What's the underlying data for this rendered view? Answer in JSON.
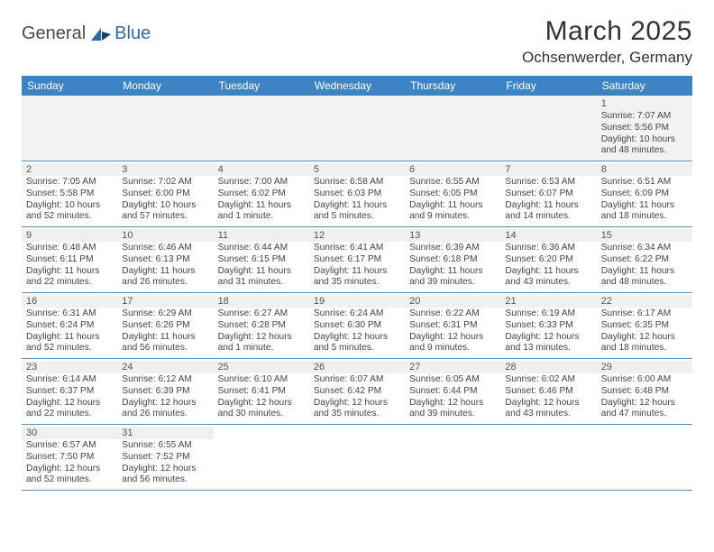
{
  "logo": {
    "text1": "General",
    "text2": "Blue"
  },
  "title": "March 2025",
  "location": "Ochsenwerder, Germany",
  "colors": {
    "header_bg": "#3d84c4",
    "header_text": "#ffffff",
    "daynum_bg": "#f0f0f0",
    "border": "#5a8cb8",
    "text": "#333333",
    "logo_dark": "#4a4a4a",
    "logo_blue": "#2d6aa8"
  },
  "fonts": {
    "title_size_pt": 22,
    "location_size_pt": 13,
    "dayheader_size_pt": 9,
    "daynum_size_pt": 8,
    "body_size_pt": 7.7
  },
  "dayNames": [
    "Sunday",
    "Monday",
    "Tuesday",
    "Wednesday",
    "Thursday",
    "Friday",
    "Saturday"
  ],
  "weeks": [
    [
      null,
      null,
      null,
      null,
      null,
      null,
      {
        "n": "1",
        "sr": "Sunrise: 7:07 AM",
        "ss": "Sunset: 5:56 PM",
        "dl1": "Daylight: 10 hours",
        "dl2": "and 48 minutes."
      }
    ],
    [
      {
        "n": "2",
        "sr": "Sunrise: 7:05 AM",
        "ss": "Sunset: 5:58 PM",
        "dl1": "Daylight: 10 hours",
        "dl2": "and 52 minutes."
      },
      {
        "n": "3",
        "sr": "Sunrise: 7:02 AM",
        "ss": "Sunset: 6:00 PM",
        "dl1": "Daylight: 10 hours",
        "dl2": "and 57 minutes."
      },
      {
        "n": "4",
        "sr": "Sunrise: 7:00 AM",
        "ss": "Sunset: 6:02 PM",
        "dl1": "Daylight: 11 hours",
        "dl2": "and 1 minute."
      },
      {
        "n": "5",
        "sr": "Sunrise: 6:58 AM",
        "ss": "Sunset: 6:03 PM",
        "dl1": "Daylight: 11 hours",
        "dl2": "and 5 minutes."
      },
      {
        "n": "6",
        "sr": "Sunrise: 6:55 AM",
        "ss": "Sunset: 6:05 PM",
        "dl1": "Daylight: 11 hours",
        "dl2": "and 9 minutes."
      },
      {
        "n": "7",
        "sr": "Sunrise: 6:53 AM",
        "ss": "Sunset: 6:07 PM",
        "dl1": "Daylight: 11 hours",
        "dl2": "and 14 minutes."
      },
      {
        "n": "8",
        "sr": "Sunrise: 6:51 AM",
        "ss": "Sunset: 6:09 PM",
        "dl1": "Daylight: 11 hours",
        "dl2": "and 18 minutes."
      }
    ],
    [
      {
        "n": "9",
        "sr": "Sunrise: 6:48 AM",
        "ss": "Sunset: 6:11 PM",
        "dl1": "Daylight: 11 hours",
        "dl2": "and 22 minutes."
      },
      {
        "n": "10",
        "sr": "Sunrise: 6:46 AM",
        "ss": "Sunset: 6:13 PM",
        "dl1": "Daylight: 11 hours",
        "dl2": "and 26 minutes."
      },
      {
        "n": "11",
        "sr": "Sunrise: 6:44 AM",
        "ss": "Sunset: 6:15 PM",
        "dl1": "Daylight: 11 hours",
        "dl2": "and 31 minutes."
      },
      {
        "n": "12",
        "sr": "Sunrise: 6:41 AM",
        "ss": "Sunset: 6:17 PM",
        "dl1": "Daylight: 11 hours",
        "dl2": "and 35 minutes."
      },
      {
        "n": "13",
        "sr": "Sunrise: 6:39 AM",
        "ss": "Sunset: 6:18 PM",
        "dl1": "Daylight: 11 hours",
        "dl2": "and 39 minutes."
      },
      {
        "n": "14",
        "sr": "Sunrise: 6:36 AM",
        "ss": "Sunset: 6:20 PM",
        "dl1": "Daylight: 11 hours",
        "dl2": "and 43 minutes."
      },
      {
        "n": "15",
        "sr": "Sunrise: 6:34 AM",
        "ss": "Sunset: 6:22 PM",
        "dl1": "Daylight: 11 hours",
        "dl2": "and 48 minutes."
      }
    ],
    [
      {
        "n": "16",
        "sr": "Sunrise: 6:31 AM",
        "ss": "Sunset: 6:24 PM",
        "dl1": "Daylight: 11 hours",
        "dl2": "and 52 minutes."
      },
      {
        "n": "17",
        "sr": "Sunrise: 6:29 AM",
        "ss": "Sunset: 6:26 PM",
        "dl1": "Daylight: 11 hours",
        "dl2": "and 56 minutes."
      },
      {
        "n": "18",
        "sr": "Sunrise: 6:27 AM",
        "ss": "Sunset: 6:28 PM",
        "dl1": "Daylight: 12 hours",
        "dl2": "and 1 minute."
      },
      {
        "n": "19",
        "sr": "Sunrise: 6:24 AM",
        "ss": "Sunset: 6:30 PM",
        "dl1": "Daylight: 12 hours",
        "dl2": "and 5 minutes."
      },
      {
        "n": "20",
        "sr": "Sunrise: 6:22 AM",
        "ss": "Sunset: 6:31 PM",
        "dl1": "Daylight: 12 hours",
        "dl2": "and 9 minutes."
      },
      {
        "n": "21",
        "sr": "Sunrise: 6:19 AM",
        "ss": "Sunset: 6:33 PM",
        "dl1": "Daylight: 12 hours",
        "dl2": "and 13 minutes."
      },
      {
        "n": "22",
        "sr": "Sunrise: 6:17 AM",
        "ss": "Sunset: 6:35 PM",
        "dl1": "Daylight: 12 hours",
        "dl2": "and 18 minutes."
      }
    ],
    [
      {
        "n": "23",
        "sr": "Sunrise: 6:14 AM",
        "ss": "Sunset: 6:37 PM",
        "dl1": "Daylight: 12 hours",
        "dl2": "and 22 minutes."
      },
      {
        "n": "24",
        "sr": "Sunrise: 6:12 AM",
        "ss": "Sunset: 6:39 PM",
        "dl1": "Daylight: 12 hours",
        "dl2": "and 26 minutes."
      },
      {
        "n": "25",
        "sr": "Sunrise: 6:10 AM",
        "ss": "Sunset: 6:41 PM",
        "dl1": "Daylight: 12 hours",
        "dl2": "and 30 minutes."
      },
      {
        "n": "26",
        "sr": "Sunrise: 6:07 AM",
        "ss": "Sunset: 6:42 PM",
        "dl1": "Daylight: 12 hours",
        "dl2": "and 35 minutes."
      },
      {
        "n": "27",
        "sr": "Sunrise: 6:05 AM",
        "ss": "Sunset: 6:44 PM",
        "dl1": "Daylight: 12 hours",
        "dl2": "and 39 minutes."
      },
      {
        "n": "28",
        "sr": "Sunrise: 6:02 AM",
        "ss": "Sunset: 6:46 PM",
        "dl1": "Daylight: 12 hours",
        "dl2": "and 43 minutes."
      },
      {
        "n": "29",
        "sr": "Sunrise: 6:00 AM",
        "ss": "Sunset: 6:48 PM",
        "dl1": "Daylight: 12 hours",
        "dl2": "and 47 minutes."
      }
    ],
    [
      {
        "n": "30",
        "sr": "Sunrise: 6:57 AM",
        "ss": "Sunset: 7:50 PM",
        "dl1": "Daylight: 12 hours",
        "dl2": "and 52 minutes."
      },
      {
        "n": "31",
        "sr": "Sunrise: 6:55 AM",
        "ss": "Sunset: 7:52 PM",
        "dl1": "Daylight: 12 hours",
        "dl2": "and 56 minutes."
      },
      null,
      null,
      null,
      null,
      null
    ]
  ]
}
